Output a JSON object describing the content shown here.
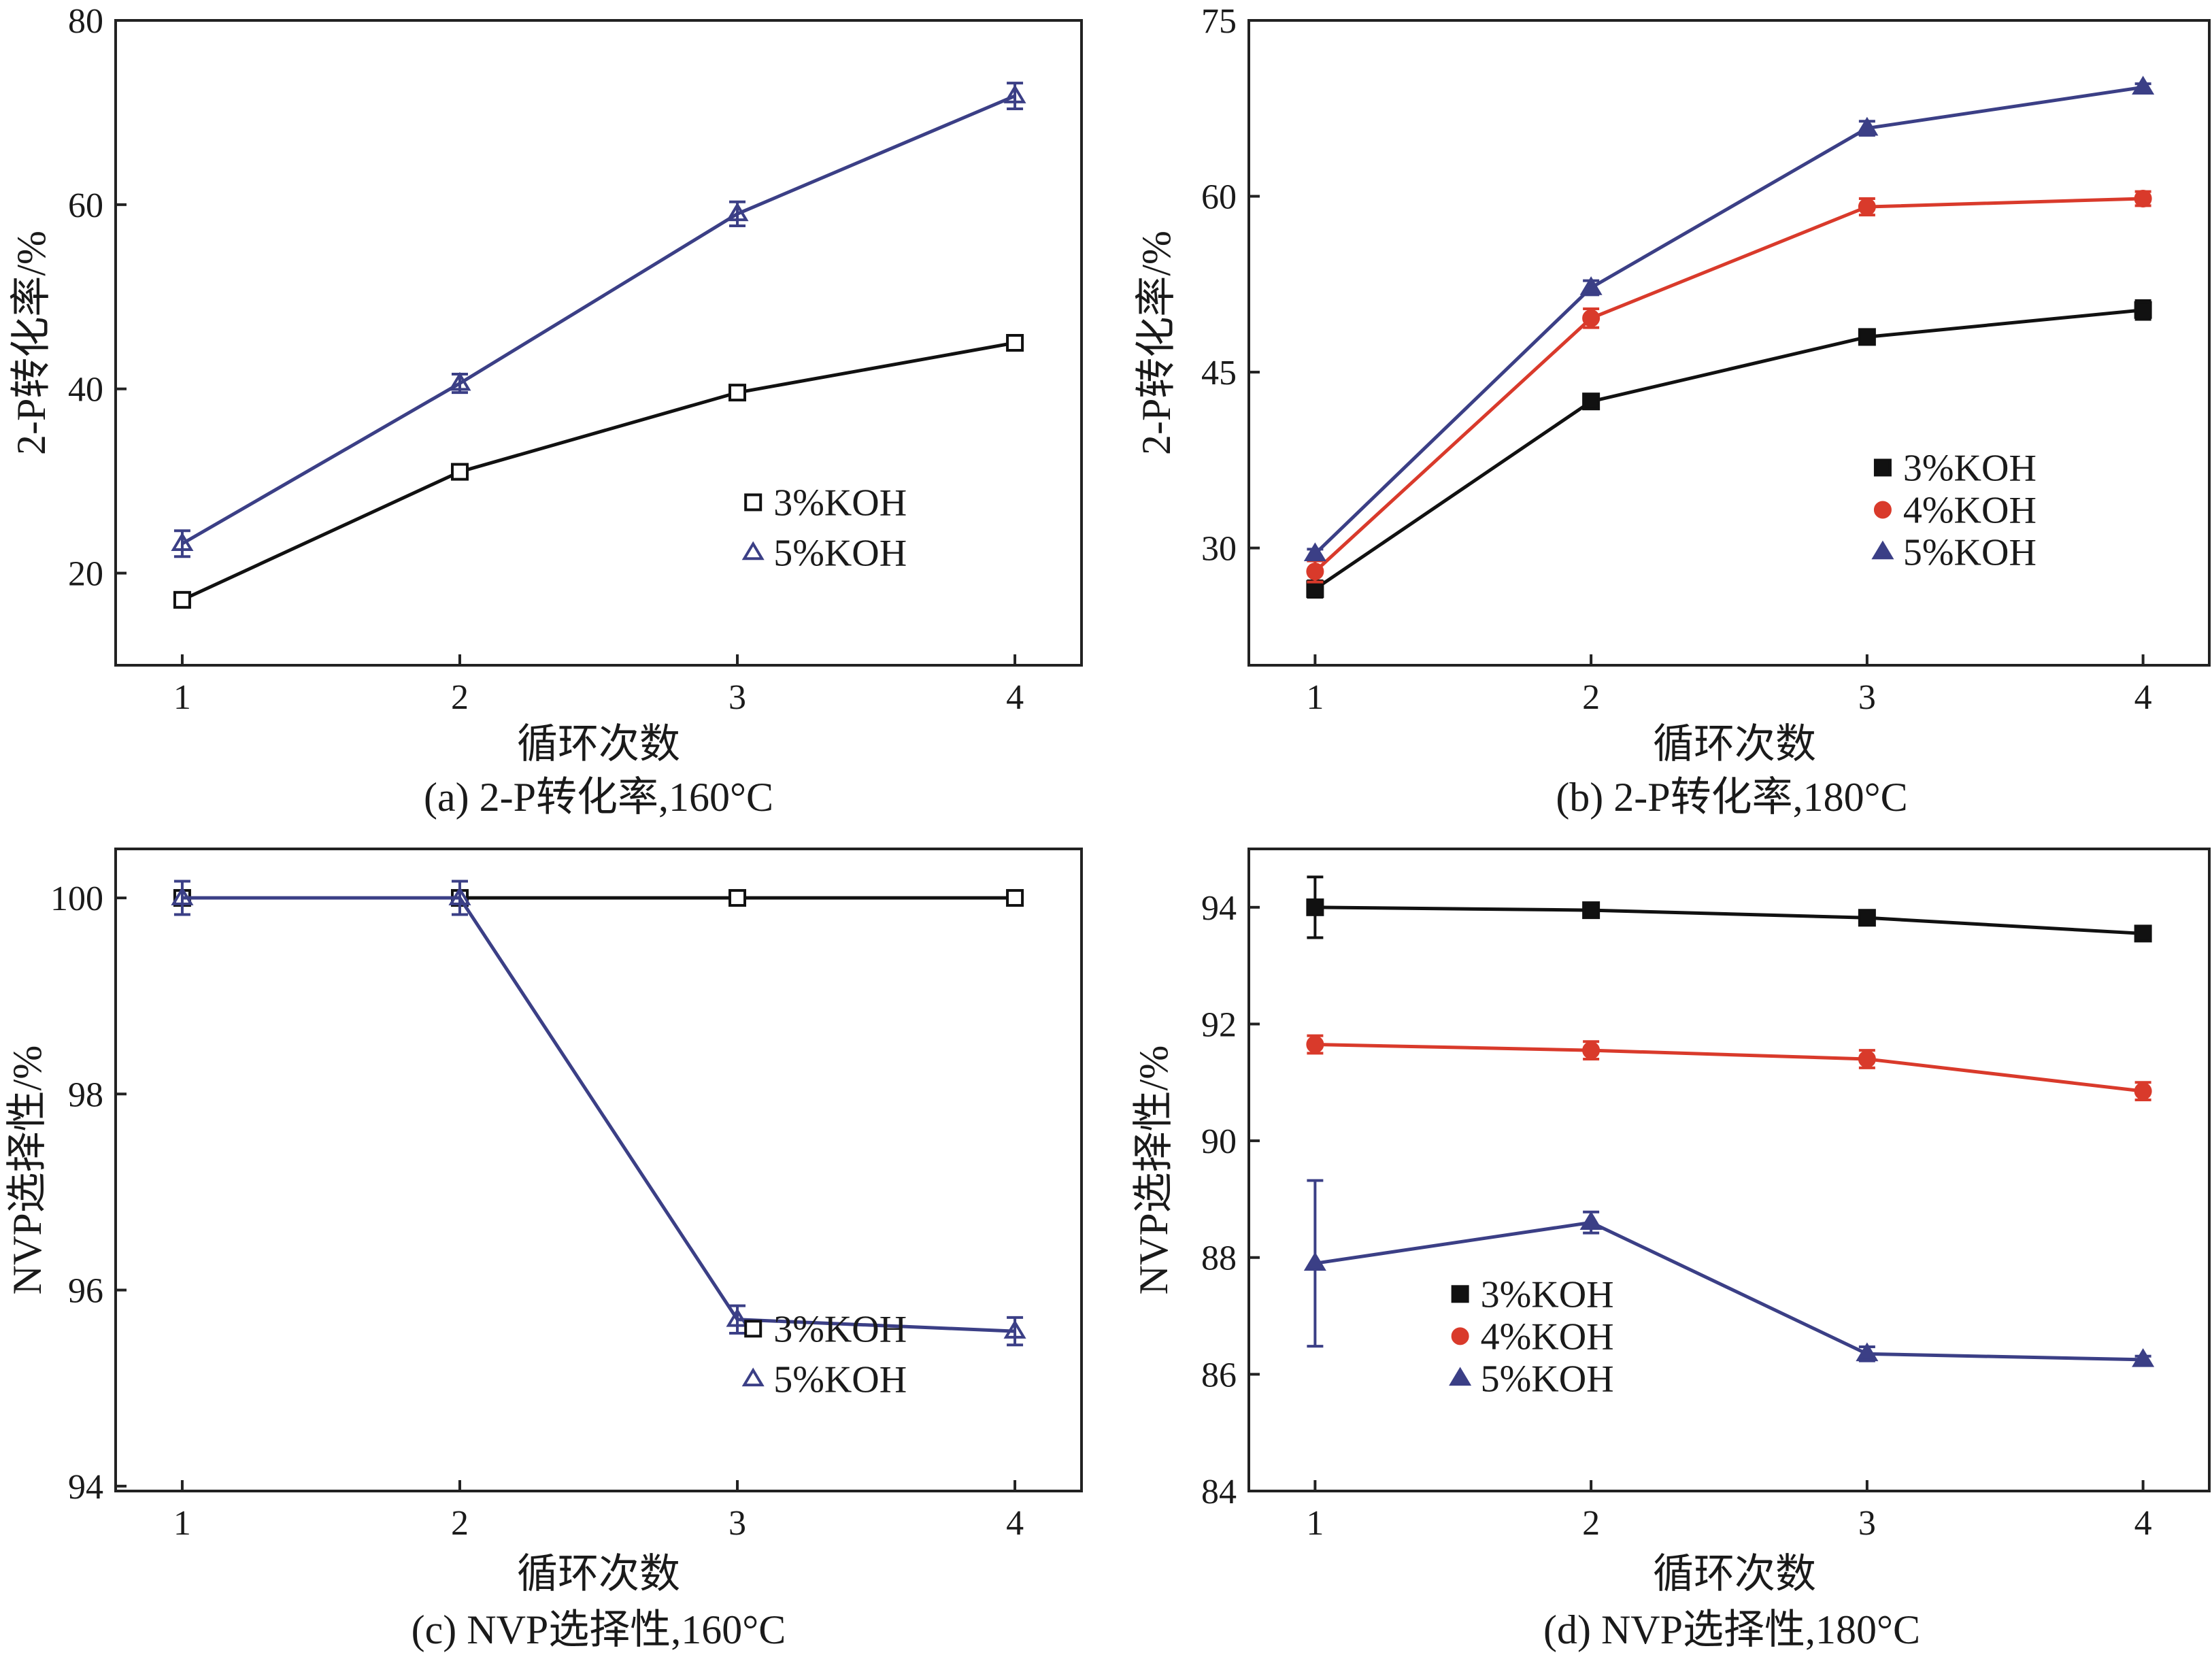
{
  "chart_data": [
    {
      "id": "a",
      "type": "line",
      "caption": "(a) 2-P转化率,160°C",
      "xlabel": "循环次数",
      "ylabel": "2-P转化率/%",
      "categories": [
        "1",
        "2",
        "3",
        "4"
      ],
      "xlim": [
        0.76,
        4.24
      ],
      "ylim": [
        10,
        80
      ],
      "yticks": [
        20,
        40,
        60,
        80
      ],
      "legend_position": "bottom-right",
      "series": [
        {
          "name": "3%KOH",
          "label": "3%KOH",
          "marker": "square-open",
          "color": "#111111",
          "values": [
            17.1,
            31.0,
            39.6,
            45.0
          ],
          "errors": [
            0.6,
            0.4,
            0.5,
            0.6
          ]
        },
        {
          "name": "5%KOH",
          "label": "5%KOH",
          "marker": "triangle-open",
          "color": "#3b3f86",
          "values": [
            23.2,
            40.6,
            59.0,
            71.8
          ],
          "errors": [
            1.4,
            1.0,
            1.3,
            1.4
          ]
        }
      ]
    },
    {
      "id": "b",
      "type": "line",
      "caption": "(b) 2-P转化率,180°C",
      "xlabel": "循环次数",
      "ylabel": "2-P转化率/%",
      "categories": [
        "1",
        "2",
        "3",
        "4"
      ],
      "xlim": [
        0.76,
        4.24
      ],
      "ylim": [
        20,
        75
      ],
      "yticks": [
        30,
        45,
        60,
        75
      ],
      "legend_position": "bottom-right",
      "series": [
        {
          "name": "3%KOH",
          "label": "3%KOH",
          "marker": "square-filled",
          "color": "#111111",
          "values": [
            26.5,
            42.5,
            48.0,
            50.3
          ],
          "errors": [
            0.7,
            0.4,
            0.5,
            0.8
          ]
        },
        {
          "name": "4%KOH",
          "label": "4%KOH",
          "marker": "circle-filled",
          "color": "#d93a2b",
          "values": [
            28.0,
            49.6,
            59.1,
            59.8
          ],
          "errors": [
            0.9,
            0.8,
            0.7,
            0.6
          ]
        },
        {
          "name": "5%KOH",
          "label": "5%KOH",
          "marker": "triangle-filled",
          "color": "#3b3f86",
          "values": [
            29.5,
            52.2,
            65.8,
            69.3
          ],
          "errors": [
            0.4,
            0.6,
            0.6,
            0.3
          ]
        }
      ]
    },
    {
      "id": "c",
      "type": "line",
      "caption": "(c) NVP选择性,160°C",
      "xlabel": "循环次数",
      "ylabel": "NVP选择性/%",
      "categories": [
        "1",
        "2",
        "3",
        "4"
      ],
      "xlim": [
        0.76,
        4.24
      ],
      "ylim": [
        93.95,
        100.5
      ],
      "yticks": [
        94,
        96,
        98,
        100
      ],
      "legend_position": "bottom-right",
      "series": [
        {
          "name": "3%KOH",
          "label": "3%KOH",
          "marker": "square-open",
          "color": "#111111",
          "values": [
            100.0,
            100.0,
            100.0,
            100.0
          ],
          "errors": [
            0.06,
            0.06,
            0.06,
            0.06
          ]
        },
        {
          "name": "5%KOH",
          "label": "5%KOH",
          "marker": "triangle-open",
          "color": "#3b3f86",
          "values": [
            100.0,
            100.0,
            95.7,
            95.58
          ],
          "errors": [
            0.17,
            0.17,
            0.14,
            0.14
          ]
        }
      ]
    },
    {
      "id": "d",
      "type": "line",
      "caption": "(d) NVP选择性,180°C",
      "xlabel": "循环次数",
      "ylabel": "NVP选择性/%",
      "categories": [
        "1",
        "2",
        "3",
        "4"
      ],
      "xlim": [
        0.76,
        4.24
      ],
      "ylim": [
        84,
        95
      ],
      "yticks": [
        84,
        86,
        88,
        90,
        92,
        94
      ],
      "legend_position": "bottom-left",
      "series": [
        {
          "name": "3%KOH",
          "label": "3%KOH",
          "marker": "square-filled",
          "color": "#111111",
          "values": [
            94.0,
            93.95,
            93.82,
            93.55
          ],
          "errors": [
            0.52,
            0.08,
            0.08,
            0.12
          ]
        },
        {
          "name": "4%KOH",
          "label": "4%KOH",
          "marker": "circle-filled",
          "color": "#d93a2b",
          "values": [
            91.65,
            91.55,
            91.4,
            90.85
          ],
          "errors": [
            0.15,
            0.15,
            0.15,
            0.15
          ]
        },
        {
          "name": "5%KOH",
          "label": "5%KOH",
          "marker": "triangle-filled",
          "color": "#3b3f86",
          "values": [
            87.9,
            88.6,
            86.35,
            86.25
          ],
          "errors": [
            1.42,
            0.18,
            0.12,
            0.06
          ]
        }
      ]
    }
  ]
}
